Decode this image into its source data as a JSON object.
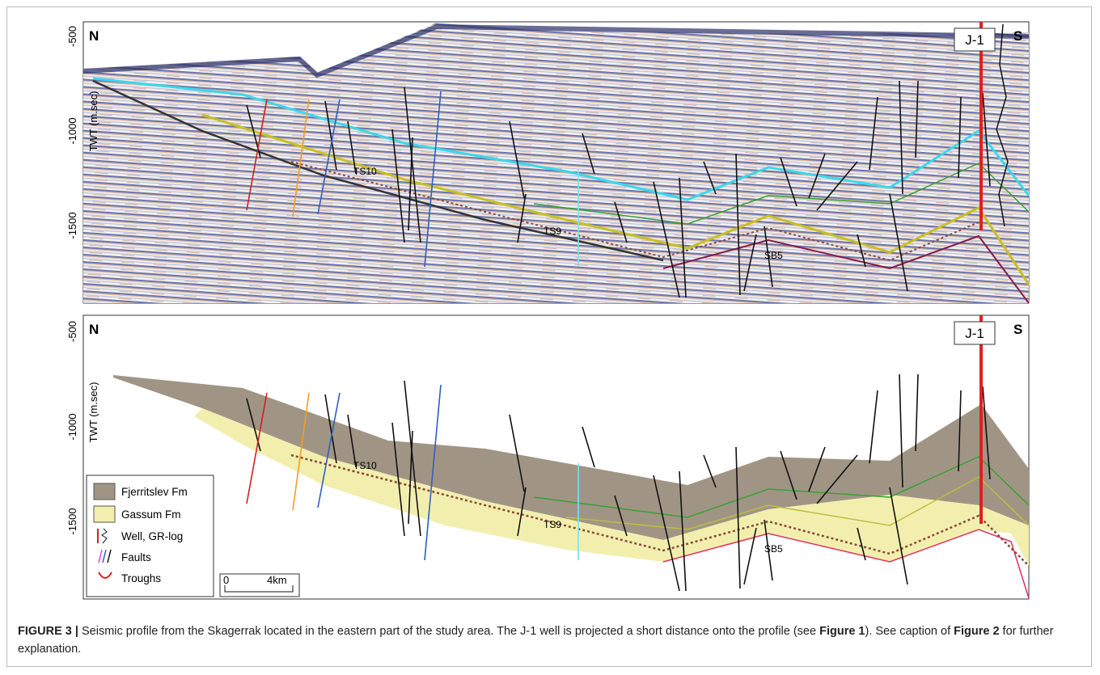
{
  "top_panel": {
    "left_label": "N",
    "right_label": "S",
    "well_label": "J-1",
    "y_axis_label": "TWT (m.sec)",
    "yticks": [
      -500,
      -1000,
      -1500
    ],
    "horizon_labels": [
      "TS10",
      "TS9",
      "SB5"
    ]
  },
  "bottom_panel": {
    "left_label": "N",
    "right_label": "S",
    "well_label": "J-1",
    "y_axis_label": "TWT (m.sec)",
    "yticks": [
      -500,
      -1000,
      -1500
    ],
    "horizon_labels": [
      "TS10",
      "TS9",
      "SB5"
    ],
    "legend": [
      "Fjerritslev Fm",
      "Gassum Fm",
      "Well, GR-log",
      "Faults",
      "Troughs"
    ],
    "scale_bar": [
      "0",
      "4km"
    ]
  },
  "caption": {
    "label": "FIGURE 3 |",
    "parts": [
      "Seismic profile from the Skagerrak located in the eastern part of the study area. The J-1 well is projected a short distance onto the profile (see ",
      "Figure 1",
      "). See caption of ",
      "Figure 2",
      " for further explanation."
    ]
  }
}
